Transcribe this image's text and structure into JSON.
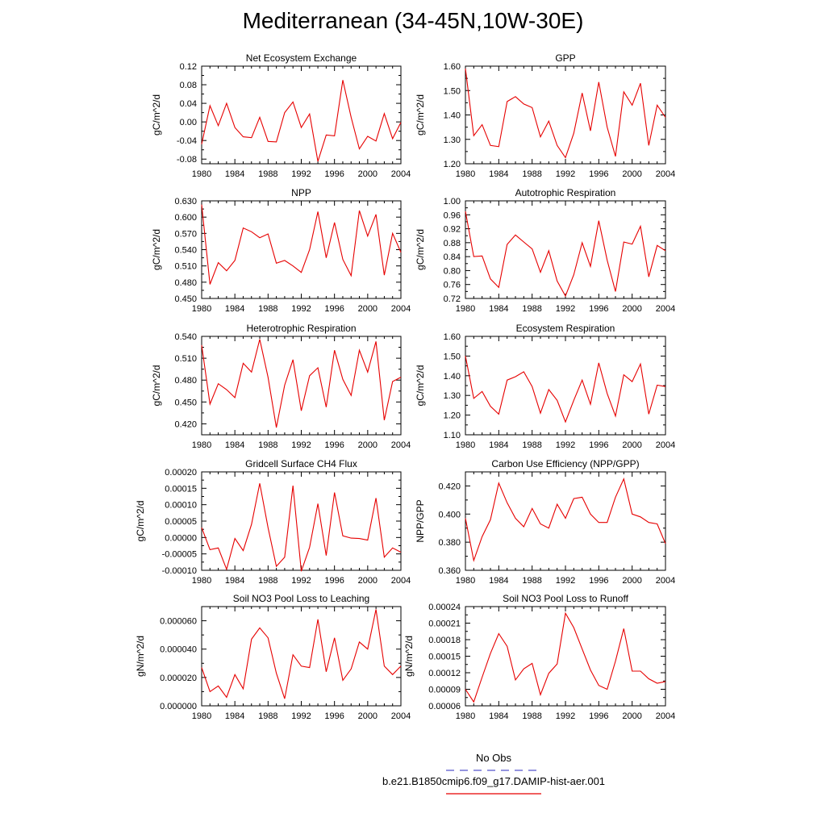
{
  "title": "Mediterranean (34-45N,10W-30E)",
  "legend": {
    "obs_label": "No Obs",
    "obs_color": "#5555cc",
    "model_label": "b.e21.B1850cmip6.f09_g17.DAMIP-hist-aer.001",
    "model_color": "#e60000"
  },
  "chart_data": [
    {
      "type": "line",
      "title": "Net Ecosystem Exchange",
      "ylabel": "gC/m^2/d",
      "xlim": [
        1980,
        2004
      ],
      "ylim": [
        -0.09,
        0.12
      ],
      "yticks": [
        -0.08,
        -0.04,
        0.0,
        0.04,
        0.08,
        0.12
      ],
      "ytick_labels": [
        "-0.08",
        "-0.04",
        "0.00",
        "0.04",
        "0.08",
        "0.12"
      ],
      "x": [
        1980,
        1981,
        1982,
        1983,
        1984,
        1985,
        1986,
        1987,
        1988,
        1989,
        1990,
        1991,
        1992,
        1993,
        1994,
        1995,
        1996,
        1997,
        1998,
        1999,
        2000,
        2001,
        2002,
        2003,
        2004
      ],
      "values": [
        -0.048,
        0.035,
        -0.008,
        0.04,
        -0.012,
        -0.032,
        -0.034,
        0.01,
        -0.042,
        -0.043,
        0.02,
        0.043,
        -0.012,
        0.017,
        -0.085,
        -0.028,
        -0.03,
        0.09,
        0.01,
        -0.058,
        -0.031,
        -0.041,
        0.018,
        -0.036,
        -0.001
      ]
    },
    {
      "type": "line",
      "title": "GPP",
      "ylabel": "gC/m^2/d",
      "xlim": [
        1980,
        2004
      ],
      "ylim": [
        1.2,
        1.6
      ],
      "yticks": [
        1.2,
        1.3,
        1.4,
        1.5,
        1.6
      ],
      "ytick_labels": [
        "1.20",
        "1.30",
        "1.40",
        "1.50",
        "1.60"
      ],
      "x": [
        1980,
        1981,
        1982,
        1983,
        1984,
        1985,
        1986,
        1987,
        1988,
        1989,
        1990,
        1991,
        1992,
        1993,
        1994,
        1995,
        1996,
        1997,
        1998,
        1999,
        2000,
        2001,
        2002,
        2003,
        2004
      ],
      "values": [
        1.59,
        1.315,
        1.36,
        1.275,
        1.27,
        1.455,
        1.475,
        1.445,
        1.43,
        1.31,
        1.375,
        1.275,
        1.225,
        1.325,
        1.49,
        1.335,
        1.535,
        1.35,
        1.23,
        1.495,
        1.44,
        1.53,
        1.275,
        1.44,
        1.39
      ]
    },
    {
      "type": "line",
      "title": "NPP",
      "ylabel": "gC/m^2/d",
      "xlim": [
        1980,
        2004
      ],
      "ylim": [
        0.45,
        0.63
      ],
      "yticks": [
        0.45,
        0.48,
        0.51,
        0.54,
        0.57,
        0.6,
        0.63
      ],
      "ytick_labels": [
        "0.450",
        "0.480",
        "0.510",
        "0.540",
        "0.570",
        "0.600",
        "0.630"
      ],
      "x": [
        1980,
        1981,
        1982,
        1983,
        1984,
        1985,
        1986,
        1987,
        1988,
        1989,
        1990,
        1991,
        1992,
        1993,
        1994,
        1995,
        1996,
        1997,
        1998,
        1999,
        2000,
        2001,
        2002,
        2003,
        2004
      ],
      "values": [
        0.623,
        0.476,
        0.516,
        0.501,
        0.52,
        0.58,
        0.573,
        0.562,
        0.569,
        0.515,
        0.52,
        0.51,
        0.498,
        0.54,
        0.61,
        0.525,
        0.59,
        0.522,
        0.492,
        0.612,
        0.565,
        0.605,
        0.493,
        0.57,
        0.535
      ]
    },
    {
      "type": "line",
      "title": "Autotrophic Respiration",
      "ylabel": "gC/m^2/d",
      "xlim": [
        1980,
        2004
      ],
      "ylim": [
        0.72,
        1.0
      ],
      "yticks": [
        0.72,
        0.76,
        0.8,
        0.84,
        0.88,
        0.92,
        0.96,
        1.0
      ],
      "ytick_labels": [
        "0.72",
        "0.76",
        "0.80",
        "0.84",
        "0.88",
        "0.92",
        "0.96",
        "1.00"
      ],
      "x": [
        1980,
        1981,
        1982,
        1983,
        1984,
        1985,
        1986,
        1987,
        1988,
        1989,
        1990,
        1991,
        1992,
        1993,
        1994,
        1995,
        1996,
        1997,
        1998,
        1999,
        2000,
        2001,
        2002,
        2003,
        2004
      ],
      "values": [
        0.97,
        0.84,
        0.842,
        0.776,
        0.752,
        0.875,
        0.902,
        0.882,
        0.862,
        0.795,
        0.857,
        0.77,
        0.727,
        0.788,
        0.88,
        0.812,
        0.943,
        0.83,
        0.74,
        0.882,
        0.876,
        0.927,
        0.782,
        0.872,
        0.857
      ]
    },
    {
      "type": "line",
      "title": "Heterotrophic Respiration",
      "ylabel": "gC/m^2/d",
      "xlim": [
        1980,
        2004
      ],
      "ylim": [
        0.405,
        0.54
      ],
      "yticks": [
        0.42,
        0.45,
        0.48,
        0.51,
        0.54
      ],
      "ytick_labels": [
        "0.420",
        "0.450",
        "0.480",
        "0.510",
        "0.540"
      ],
      "x": [
        1980,
        1981,
        1982,
        1983,
        1984,
        1985,
        1986,
        1987,
        1988,
        1989,
        1990,
        1991,
        1992,
        1993,
        1994,
        1995,
        1996,
        1997,
        1998,
        1999,
        2000,
        2001,
        2002,
        2003,
        2004
      ],
      "values": [
        0.528,
        0.447,
        0.475,
        0.467,
        0.456,
        0.503,
        0.491,
        0.536,
        0.484,
        0.415,
        0.473,
        0.508,
        0.438,
        0.486,
        0.497,
        0.443,
        0.521,
        0.481,
        0.459,
        0.521,
        0.491,
        0.533,
        0.425,
        0.478,
        0.484
      ]
    },
    {
      "type": "line",
      "title": "Ecosystem Respiration",
      "ylabel": "gC/m^2/d",
      "xlim": [
        1980,
        2004
      ],
      "ylim": [
        1.1,
        1.6
      ],
      "yticks": [
        1.1,
        1.2,
        1.3,
        1.4,
        1.5,
        1.6
      ],
      "ytick_labels": [
        "1.10",
        "1.20",
        "1.30",
        "1.40",
        "1.50",
        "1.60"
      ],
      "x": [
        1980,
        1981,
        1982,
        1983,
        1984,
        1985,
        1986,
        1987,
        1988,
        1989,
        1990,
        1991,
        1992,
        1993,
        1994,
        1995,
        1996,
        1997,
        1998,
        1999,
        2000,
        2001,
        2002,
        2003,
        2004
      ],
      "values": [
        1.5,
        1.285,
        1.32,
        1.245,
        1.205,
        1.378,
        1.395,
        1.42,
        1.345,
        1.21,
        1.33,
        1.275,
        1.165,
        1.275,
        1.378,
        1.255,
        1.465,
        1.31,
        1.195,
        1.405,
        1.37,
        1.46,
        1.205,
        1.352,
        1.345
      ]
    },
    {
      "type": "line",
      "title": "Gridcell Surface CH4 Flux",
      "ylabel": "gC/m^2/d",
      "xlim": [
        1980,
        2004
      ],
      "ylim": [
        -0.0001,
        0.0002
      ],
      "yticks": [
        -0.0001,
        -5e-05,
        0.0,
        5e-05,
        0.0001,
        0.00015,
        0.0002
      ],
      "ytick_labels": [
        "-0.00010",
        "-0.00005",
        "0.00000",
        "0.00005",
        "0.00010",
        "0.00015",
        "0.00020"
      ],
      "x": [
        1980,
        1981,
        1982,
        1983,
        1984,
        1985,
        1986,
        1987,
        1988,
        1989,
        1990,
        1991,
        1992,
        1993,
        1994,
        1995,
        1996,
        1997,
        1998,
        1999,
        2000,
        2001,
        2002,
        2003,
        2004
      ],
      "values": [
        3e-05,
        -3.7e-05,
        -3.2e-05,
        -9.7e-05,
        -3e-06,
        -4e-05,
        4e-05,
        0.000165,
        3e-05,
        -8.8e-05,
        -6e-05,
        0.000158,
        -0.000103,
        -3e-05,
        0.000103,
        -5.5e-05,
        0.000137,
        5e-06,
        -2e-06,
        -3e-06,
        -8e-06,
        0.00012,
        -6e-05,
        -3.2e-05,
        -4.5e-05
      ]
    },
    {
      "type": "line",
      "title": "Carbon Use Efficiency (NPP/GPP)",
      "ylabel": "NPP/GPP",
      "xlim": [
        1980,
        2004
      ],
      "ylim": [
        0.36,
        0.43
      ],
      "yticks": [
        0.36,
        0.38,
        0.4,
        0.42
      ],
      "ytick_labels": [
        "0.360",
        "0.380",
        "0.400",
        "0.420"
      ],
      "x": [
        1980,
        1981,
        1982,
        1983,
        1984,
        1985,
        1986,
        1987,
        1988,
        1989,
        1990,
        1991,
        1992,
        1993,
        1994,
        1995,
        1996,
        1997,
        1998,
        1999,
        2000,
        2001,
        2002,
        2003,
        2004
      ],
      "values": [
        0.397,
        0.367,
        0.384,
        0.396,
        0.422,
        0.408,
        0.397,
        0.391,
        0.404,
        0.393,
        0.39,
        0.407,
        0.397,
        0.411,
        0.412,
        0.4,
        0.394,
        0.394,
        0.412,
        0.425,
        0.4,
        0.398,
        0.394,
        0.393,
        0.379
      ]
    },
    {
      "type": "line",
      "title": "Soil NO3 Pool Loss to Leaching",
      "ylabel": "gN/m^2/d",
      "xlim": [
        1980,
        2004
      ],
      "ylim": [
        0.0,
        7e-05
      ],
      "yticks": [
        0.0,
        2e-05,
        4e-05,
        6e-05
      ],
      "ytick_labels": [
        "0.000000",
        "0.000020",
        "0.000040",
        "0.000060"
      ],
      "x": [
        1980,
        1981,
        1982,
        1983,
        1984,
        1985,
        1986,
        1987,
        1988,
        1989,
        1990,
        1991,
        1992,
        1993,
        1994,
        1995,
        1996,
        1997,
        1998,
        1999,
        2000,
        2001,
        2002,
        2003,
        2004
      ],
      "values": [
        2.7e-05,
        1e-05,
        1.4e-05,
        6e-06,
        2.2e-05,
        1.2e-05,
        4.7e-05,
        5.5e-05,
        4.8e-05,
        2.3e-05,
        5e-06,
        3.6e-05,
        2.8e-05,
        2.7e-05,
        6.1e-05,
        2.4e-05,
        4.8e-05,
        1.8e-05,
        2.6e-05,
        4.5e-05,
        4e-05,
        6.8e-05,
        2.8e-05,
        2.2e-05,
        2.8e-05
      ]
    },
    {
      "type": "line",
      "title": "Soil NO3 Pool Loss to Runoff",
      "ylabel": "gN/m^2/d",
      "xlim": [
        1980,
        2004
      ],
      "ylim": [
        6e-05,
        0.00024
      ],
      "yticks": [
        6e-05,
        9e-05,
        0.00012,
        0.00015,
        0.00018,
        0.00021,
        0.00024
      ],
      "ytick_labels": [
        "0.00006",
        "0.00009",
        "0.00012",
        "0.00015",
        "0.00018",
        "0.00021",
        "0.00024"
      ],
      "x": [
        1980,
        1981,
        1982,
        1983,
        1984,
        1985,
        1986,
        1987,
        1988,
        1989,
        1990,
        1991,
        1992,
        1993,
        1994,
        1995,
        1996,
        1997,
        1998,
        1999,
        2000,
        2001,
        2002,
        2003,
        2004
      ],
      "values": [
        9e-05,
        6.7e-05,
        0.000112,
        0.000155,
        0.000191,
        0.000168,
        0.000107,
        0.000127,
        0.000137,
        8e-05,
        0.000119,
        0.000136,
        0.000228,
        0.000202,
        0.000163,
        0.000125,
        9.7e-05,
        9e-05,
        0.000141,
        0.0002,
        0.000123,
        0.000123,
        0.000109,
        0.000101,
        0.000104
      ]
    }
  ]
}
